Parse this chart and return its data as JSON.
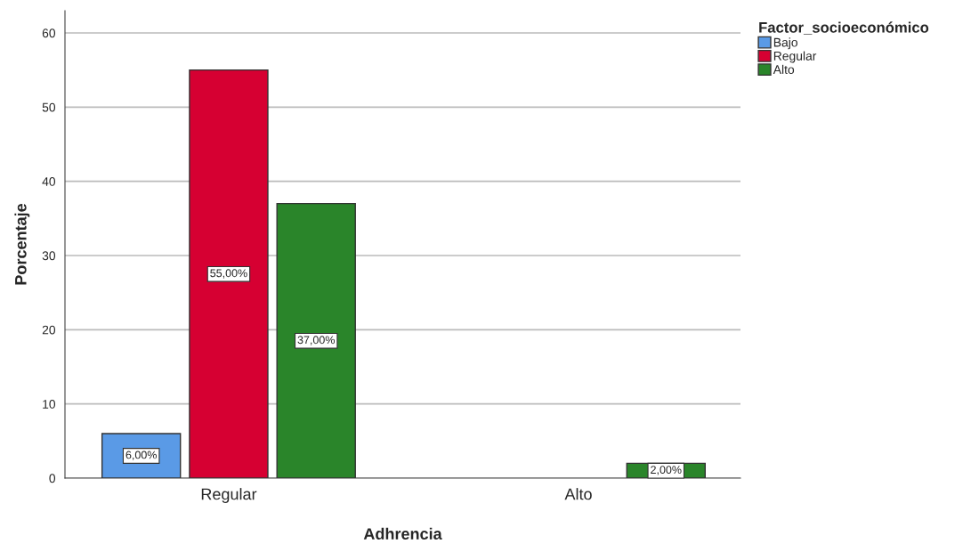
{
  "chart_data": {
    "type": "bar",
    "xlabel": "Adhrencia",
    "ylabel": "Porcentaje",
    "legend_title": "Factor_socioeconómico",
    "categories": [
      "Regular",
      "Alto"
    ],
    "series": [
      {
        "name": "Bajo",
        "color": "#5a9ae6",
        "values": [
          6,
          null
        ],
        "value_labels": [
          "6,00%",
          null
        ]
      },
      {
        "name": "Regular",
        "color": "#d60032",
        "values": [
          55,
          null
        ],
        "value_labels": [
          "55,00%",
          null
        ]
      },
      {
        "name": "Alto",
        "color": "#2a852a",
        "values": [
          37,
          2
        ],
        "value_labels": [
          "37,00%",
          "2,00%"
        ]
      }
    ],
    "ylim": [
      0,
      63
    ],
    "yticks": [
      0,
      10,
      20,
      30,
      40,
      50,
      60
    ],
    "grid": "y",
    "legend": "top right"
  }
}
